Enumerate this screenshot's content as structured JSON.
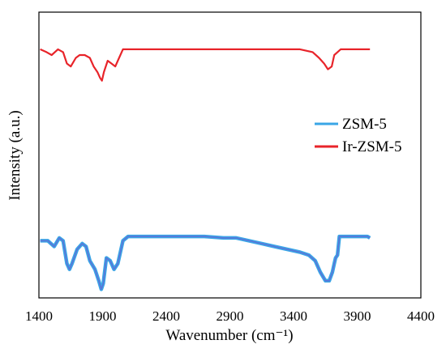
{
  "chart_data": {
    "type": "line",
    "xlabel": "Wavenumber (cm⁻¹)",
    "ylabel": "Intensity (a.u.)",
    "xlim": [
      1400,
      4400
    ],
    "x_ticks": [
      "1400",
      "1900",
      "2400",
      "2900",
      "3400",
      "3900",
      "4400"
    ],
    "y_ticks": "none",
    "grid": false,
    "legend": {
      "placement": "right-middle",
      "entries": [
        {
          "label": "ZSM-5",
          "color": "#3aa6e6"
        },
        {
          "label": "Ir-ZSM-5",
          "color": "#e8242a"
        }
      ]
    },
    "series": [
      {
        "name": "ZSM-5",
        "color": "#3aa6e6",
        "inner_color": "#5b74d8",
        "values": [
          [
            1410,
            0.2
          ],
          [
            1470,
            0.2
          ],
          [
            1520,
            0.18
          ],
          [
            1560,
            0.21
          ],
          [
            1590,
            0.2
          ],
          [
            1620,
            0.12
          ],
          [
            1640,
            0.1
          ],
          [
            1660,
            0.12
          ],
          [
            1700,
            0.17
          ],
          [
            1740,
            0.19
          ],
          [
            1770,
            0.18
          ],
          [
            1800,
            0.13
          ],
          [
            1840,
            0.1
          ],
          [
            1870,
            0.06
          ],
          [
            1890,
            0.03
          ],
          [
            1905,
            0.05
          ],
          [
            1930,
            0.14
          ],
          [
            1960,
            0.13
          ],
          [
            1990,
            0.1
          ],
          [
            2020,
            0.12
          ],
          [
            2060,
            0.2
          ],
          [
            2100,
            0.215
          ],
          [
            2300,
            0.215
          ],
          [
            2500,
            0.215
          ],
          [
            2700,
            0.215
          ],
          [
            2850,
            0.21
          ],
          [
            2950,
            0.21
          ],
          [
            3050,
            0.2
          ],
          [
            3150,
            0.19
          ],
          [
            3250,
            0.18
          ],
          [
            3350,
            0.17
          ],
          [
            3450,
            0.16
          ],
          [
            3520,
            0.15
          ],
          [
            3570,
            0.13
          ],
          [
            3610,
            0.09
          ],
          [
            3650,
            0.06
          ],
          [
            3680,
            0.06
          ],
          [
            3705,
            0.09
          ],
          [
            3720,
            0.12
          ],
          [
            3730,
            0.14
          ],
          [
            3745,
            0.15
          ],
          [
            3760,
            0.215
          ],
          [
            3900,
            0.215
          ],
          [
            3980,
            0.215
          ],
          [
            4000,
            0.21
          ]
        ]
      },
      {
        "name": "Ir-ZSM-5",
        "color": "#e8242a",
        "values": [
          [
            1410,
            0.87
          ],
          [
            1460,
            0.86
          ],
          [
            1500,
            0.85
          ],
          [
            1550,
            0.87
          ],
          [
            1590,
            0.86
          ],
          [
            1620,
            0.82
          ],
          [
            1650,
            0.81
          ],
          [
            1690,
            0.84
          ],
          [
            1720,
            0.85
          ],
          [
            1760,
            0.85
          ],
          [
            1800,
            0.84
          ],
          [
            1830,
            0.81
          ],
          [
            1860,
            0.79
          ],
          [
            1880,
            0.77
          ],
          [
            1895,
            0.76
          ],
          [
            1910,
            0.79
          ],
          [
            1940,
            0.83
          ],
          [
            1970,
            0.82
          ],
          [
            2000,
            0.81
          ],
          [
            2020,
            0.83
          ],
          [
            2060,
            0.87
          ],
          [
            2200,
            0.87
          ],
          [
            2400,
            0.87
          ],
          [
            2600,
            0.87
          ],
          [
            2800,
            0.87
          ],
          [
            3000,
            0.87
          ],
          [
            3100,
            0.87
          ],
          [
            3300,
            0.87
          ],
          [
            3450,
            0.87
          ],
          [
            3550,
            0.86
          ],
          [
            3600,
            0.84
          ],
          [
            3640,
            0.82
          ],
          [
            3670,
            0.8
          ],
          [
            3700,
            0.81
          ],
          [
            3720,
            0.85
          ],
          [
            3745,
            0.86
          ],
          [
            3770,
            0.87
          ],
          [
            3900,
            0.87
          ],
          [
            4000,
            0.87
          ]
        ]
      }
    ]
  }
}
